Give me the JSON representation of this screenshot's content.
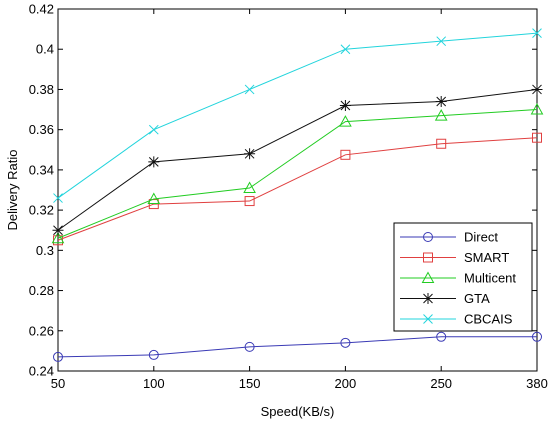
{
  "chart_data": {
    "type": "line",
    "title": "",
    "xlabel": "Speed(KB/s)",
    "ylabel": "Delivery Ratio",
    "categories": [
      "50",
      "100",
      "150",
      "200",
      "250",
      "380"
    ],
    "ylim": [
      0.24,
      0.42
    ],
    "yticks": [
      "0.24",
      "0.26",
      "0.28",
      "0.3",
      "0.32",
      "0.34",
      "0.36",
      "0.38",
      "0.4",
      "0.42"
    ],
    "grid": false,
    "legend_position": "bottom-right",
    "series": [
      {
        "name": "Direct",
        "color": "#3a3ab5",
        "marker": "circle",
        "values": [
          0.247,
          0.248,
          0.252,
          0.254,
          0.257,
          0.257
        ]
      },
      {
        "name": "SMART",
        "color": "#e04040",
        "marker": "square",
        "values": [
          0.305,
          0.323,
          0.3245,
          0.3475,
          0.353,
          0.356
        ]
      },
      {
        "name": "Multicent",
        "color": "#22cc22",
        "marker": "triangle",
        "values": [
          0.306,
          0.3255,
          0.331,
          0.364,
          0.367,
          0.37
        ]
      },
      {
        "name": "GTA",
        "color": "#111111",
        "marker": "star",
        "values": [
          0.31,
          0.344,
          0.348,
          0.372,
          0.374,
          0.38
        ]
      },
      {
        "name": "CBCAIS",
        "color": "#22d4dc",
        "marker": "x",
        "values": [
          0.326,
          0.36,
          0.38,
          0.4,
          0.404,
          0.408
        ]
      }
    ]
  }
}
